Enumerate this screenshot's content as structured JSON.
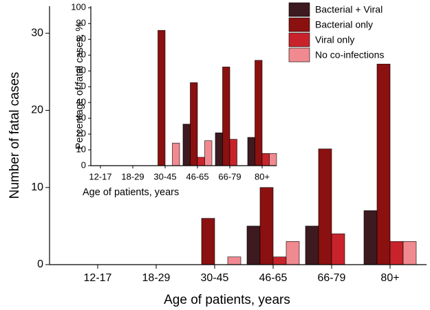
{
  "chart_data": [
    {
      "type": "bar",
      "x_label": "Age of patients, years",
      "y_label": "Number of fatal cases",
      "categories": [
        "12-17",
        "18-29",
        "30-45",
        "46-65",
        "66-79",
        "80+"
      ],
      "series": [
        {
          "name": "Bacterial + Viral",
          "color": "#3d1a1f",
          "values": [
            0,
            0,
            0,
            5,
            5,
            7
          ]
        },
        {
          "name": "Bacterial only",
          "color": "#8b1010",
          "values": [
            0,
            0,
            6,
            10,
            15,
            26
          ]
        },
        {
          "name": "Viral only",
          "color": "#c8232b",
          "values": [
            0,
            0,
            0,
            1,
            4,
            3
          ]
        },
        {
          "name": "No co-infections",
          "color": "#f08a90",
          "values": [
            0,
            0,
            1,
            3,
            0,
            3
          ]
        }
      ],
      "ylim": [
        0,
        33.5
      ],
      "yticks": [
        0,
        10,
        20,
        30
      ],
      "legend": "upper right"
    },
    {
      "type": "bar",
      "x_label": "Age of patients, years",
      "y_label": "Percentage of fatal cases, %",
      "categories": [
        "12-17",
        "18-29",
        "30-45",
        "46-65",
        "66-79",
        "80+"
      ],
      "series": [
        {
          "color": "#3d1a1f",
          "values": [
            0,
            0,
            0,
            26.3,
            20.8,
            17.9
          ]
        },
        {
          "color": "#8b1010",
          "values": [
            0,
            0,
            85.7,
            52.6,
            62.5,
            66.7
          ]
        },
        {
          "color": "#c8232b",
          "values": [
            0,
            0,
            0,
            5.3,
            16.7,
            7.7
          ]
        },
        {
          "color": "#f08a90",
          "values": [
            0,
            0,
            14.3,
            15.8,
            0,
            7.7
          ]
        }
      ],
      "ylim": [
        0,
        101
      ],
      "yticks": [
        0,
        10,
        20,
        30,
        40,
        50,
        60,
        70,
        80,
        90,
        100
      ]
    }
  ]
}
